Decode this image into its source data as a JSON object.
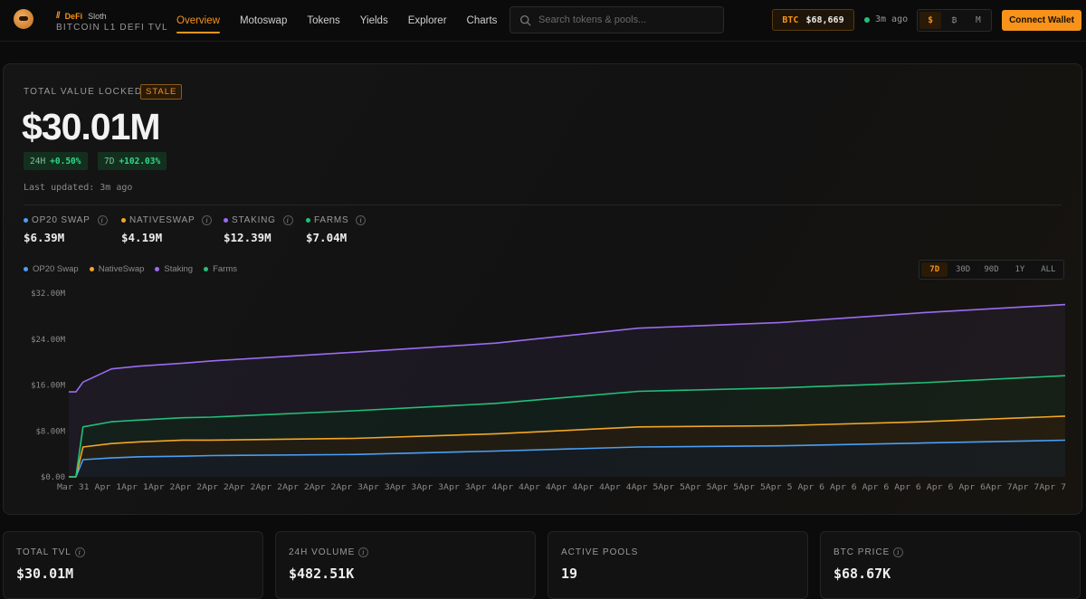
{
  "header": {
    "brand_top": "DeFi",
    "brand_tag": "Sloth",
    "brand_sub": "BITCOIN L1 DEFI TVL",
    "nav": [
      {
        "label": "Overview",
        "active": true
      },
      {
        "label": "Motoswap",
        "active": false
      },
      {
        "label": "Tokens",
        "active": false
      },
      {
        "label": "Yields",
        "active": false
      },
      {
        "label": "Explorer",
        "active": false
      },
      {
        "label": "Charts",
        "active": false
      }
    ],
    "search_placeholder": "Search tokens & pools...",
    "btc_label": "BTC",
    "btc_price": "$68,669",
    "status_text": "3m ago",
    "currency": [
      "$",
      "₿",
      "M"
    ],
    "connect_label": "Connect Wallet"
  },
  "tvl": {
    "label": "TOTAL VALUE LOCKED",
    "stale_badge": "STALE",
    "value": "$30.01M",
    "change_24h_label": "24H",
    "change_24h": "+0.50%",
    "change_7d_label": "7D",
    "change_7d": "+102.03%",
    "updated": "Last updated: 3m ago"
  },
  "breakdown": [
    {
      "label": "OP20 SWAP",
      "value": "$6.39M",
      "color": "#4a9ff5"
    },
    {
      "label": "NATIVESWAP",
      "value": "$4.19M",
      "color": "#f5a623"
    },
    {
      "label": "STAKING",
      "value": "$12.39M",
      "color": "#9b6cf0"
    },
    {
      "label": "FARMS",
      "value": "$7.04M",
      "color": "#22c07a"
    }
  ],
  "ranges": [
    "7D",
    "30D",
    "90D",
    "1Y",
    "ALL"
  ],
  "chart_data": {
    "type": "area",
    "stacked": true,
    "grid": false,
    "legend_placement": "top-left",
    "ylim": [
      0,
      32
    ],
    "y_unit": "M USD",
    "y_ticks": [
      "$0.00",
      "$8.00M",
      "$16.00M",
      "$24.00M",
      "$32.00M"
    ],
    "x_tick_labels": [
      "Mar 31",
      "Apr 1",
      "Apr 1",
      "Apr 2",
      "Apr 2",
      "Apr 2",
      "Apr 2",
      "Apr 2",
      "Apr 2",
      "Apr 2",
      "Apr 3",
      "Apr 3",
      "Apr 3",
      "Apr 3",
      "Apr 3",
      "Apr 3",
      "Apr 4",
      "Apr 4",
      "Apr 4",
      "Apr 4",
      "Apr 4",
      "Apr 4",
      "Apr 4",
      "Apr 5",
      "Apr 5",
      "Apr 5",
      "Apr 5",
      "Apr 5",
      "Apr 5",
      "Apr 6",
      "Apr 6",
      "Apr 6",
      "Apr 6",
      "Apr 6",
      "Apr 6",
      "Apr 6",
      "Apr 7",
      "Apr 7"
    ],
    "x_tick_text": "Mar 31 Apr 1Apr 1Apr 2Apr 2Apr 2Apr 2Apr 2Apr 2Apr 2Apr 3Apr 3Apr 3Apr 3Apr 3Apr 4Apr 4Apr 4Apr 4Apr 4Apr 4Apr 5Apr 5Apr 5Apr 5Apr 5Apr 5 Apr 6 Apr 6 Apr 6 Apr 6 Apr 6 Apr 6Apr 7Apr 7Apr 7",
    "x": [
      0,
      0.05,
      0.1,
      0.3,
      0.5,
      0.8,
      1,
      2,
      3,
      4,
      5,
      6,
      7
    ],
    "series": [
      {
        "name": "OP20 Swap",
        "color": "#4a9ff5",
        "values": [
          0,
          0,
          3.0,
          3.3,
          3.5,
          3.6,
          3.7,
          3.9,
          4.5,
          5.2,
          5.4,
          5.9,
          6.39
        ]
      },
      {
        "name": "NativeSwap",
        "color": "#f5a623",
        "values": [
          0,
          0,
          2.2,
          2.5,
          2.6,
          2.8,
          2.7,
          2.8,
          3.0,
          3.5,
          3.5,
          3.7,
          4.19
        ]
      },
      {
        "name": "Staking",
        "color": "#9b6cf0",
        "values": [
          14.8,
          14.8,
          7.8,
          9.2,
          9.4,
          9.5,
          9.8,
          10.2,
          10.5,
          11.0,
          11.4,
          12.2,
          12.39
        ]
      },
      {
        "name": "Farms",
        "color": "#22c07a",
        "values": [
          0,
          0,
          3.5,
          3.8,
          3.8,
          3.9,
          4.0,
          4.8,
          5.3,
          6.2,
          6.6,
          6.8,
          7.04
        ]
      }
    ]
  },
  "stats": [
    {
      "label": "TOTAL TVL",
      "value": "$30.01M"
    },
    {
      "label": "24H VOLUME",
      "value": "$482.51K"
    },
    {
      "label": "ACTIVE POOLS",
      "value": "19"
    },
    {
      "label": "BTC PRICE",
      "value": "$68.67K"
    }
  ]
}
